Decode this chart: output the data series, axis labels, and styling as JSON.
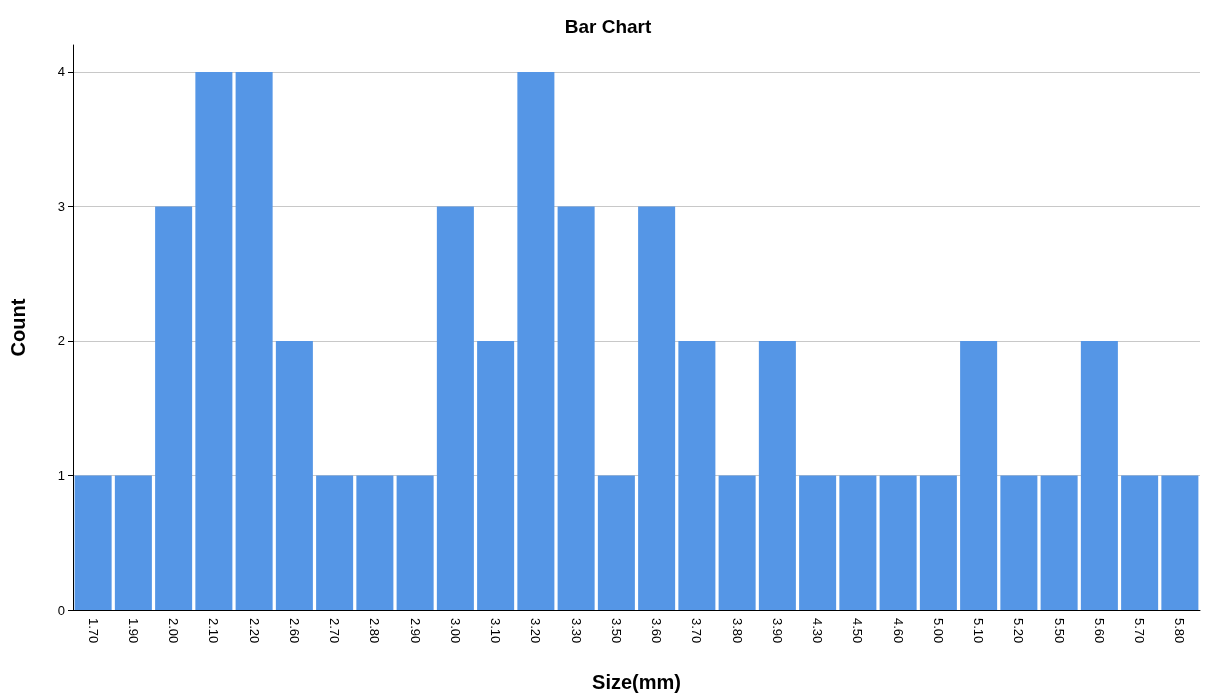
{
  "chart_data": {
    "type": "bar",
    "title": "Bar Chart",
    "xlabel": "Size(mm)",
    "ylabel": "Count",
    "categories": [
      "1.70",
      "1.90",
      "2.00",
      "2.10",
      "2.20",
      "2.60",
      "2.70",
      "2.80",
      "2.90",
      "3.00",
      "3.10",
      "3.20",
      "3.30",
      "3.50",
      "3.60",
      "3.70",
      "3.80",
      "3.90",
      "4.30",
      "4.50",
      "4.60",
      "5.00",
      "5.10",
      "5.20",
      "5.50",
      "5.60",
      "5.70",
      "5.80"
    ],
    "values": [
      1,
      1,
      3,
      4,
      4,
      2,
      1,
      1,
      1,
      3,
      2,
      4,
      3,
      1,
      3,
      2,
      1,
      2,
      1,
      1,
      1,
      1,
      2,
      1,
      1,
      2,
      1,
      1
    ],
    "color": "#5596e6",
    "ylim": [
      0,
      4.2
    ],
    "yticks": [
      0,
      1,
      2,
      3,
      4
    ],
    "grid": "y"
  }
}
